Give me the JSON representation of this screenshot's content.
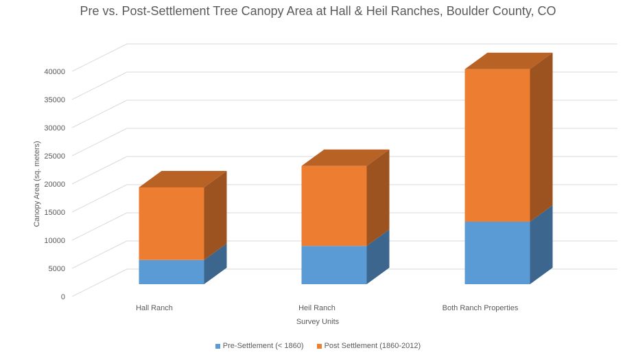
{
  "chart_data": {
    "type": "bar",
    "stacked": true,
    "style": "3d",
    "title": "Pre vs. Post-Settlement Tree Canopy Area at Hall & Heil Ranches, Boulder County, CO",
    "xlabel": "Survey Units",
    "ylabel": "Canopy Area (sq. meters)",
    "ylim": [
      0,
      40000
    ],
    "yticks": [
      0,
      5000,
      10000,
      15000,
      20000,
      25000,
      30000,
      35000,
      40000
    ],
    "categories": [
      "Hall Ranch",
      "Heil Ranch",
      "Both Ranch Properties"
    ],
    "series": [
      {
        "name": "Pre-Settlement (< 1860)",
        "values": [
          4300,
          6800,
          11100
        ],
        "color": "#5B9BD5"
      },
      {
        "name": "Post Settlement (1860-2012)",
        "values": [
          12900,
          14200,
          27100
        ],
        "color": "#ED7D31"
      }
    ],
    "legend_position": "bottom",
    "grid": true
  }
}
